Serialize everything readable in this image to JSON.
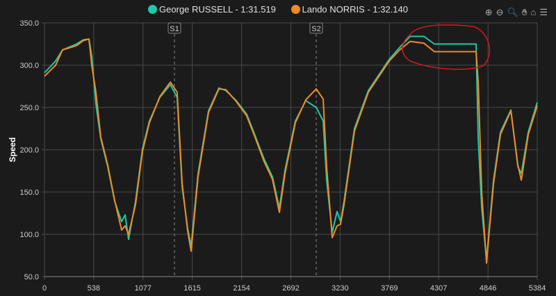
{
  "chart_data": {
    "type": "line",
    "title": "",
    "xlabel": "",
    "ylabel": "Speed",
    "xlim": [
      0,
      5384
    ],
    "ylim": [
      50,
      350
    ],
    "x_ticks": [
      "0",
      "538",
      "1077",
      "1615",
      "2154",
      "2692",
      "3230",
      "3769",
      "4307",
      "4846",
      "5384"
    ],
    "y_ticks": [
      "50.0",
      "100.0",
      "150.0",
      "200.0",
      "250.0",
      "300.0",
      "350.0"
    ],
    "grid": true,
    "legend_placement": "top-center",
    "markers": [
      {
        "label": "S1",
        "x": 1420
      },
      {
        "label": "S2",
        "x": 2969
      }
    ],
    "series": [
      {
        "name": "George RUSSELL - 1:31.519",
        "color": "#1fc8a8",
        "x": [
          0,
          122,
          197,
          349,
          425,
          486,
          516,
          562,
          615,
          691,
          767,
          843,
          881,
          919,
          995,
          1071,
          1147,
          1261,
          1375,
          1450,
          1504,
          1564,
          1602,
          1678,
          1792,
          1906,
          1982,
          2096,
          2210,
          2286,
          2400,
          2491,
          2567,
          2628,
          2741,
          2855,
          2969,
          3045,
          3083,
          3144,
          3197,
          3235,
          3273,
          3387,
          3539,
          3767,
          3881,
          3994,
          4146,
          4260,
          4716,
          4739,
          4777,
          4830,
          4906,
          4982,
          5096,
          5172,
          5210,
          5286,
          5384
        ],
        "y": [
          291,
          305,
          318,
          325,
          330,
          331,
          311,
          254,
          213,
          180,
          139,
          115,
          123,
          94,
          139,
          201,
          234,
          262,
          277,
          262,
          156,
          107,
          86,
          172,
          246,
          273,
          270,
          258,
          242,
          221,
          189,
          168,
          131,
          176,
          234,
          258,
          250,
          234,
          164,
          102,
          127,
          115,
          139,
          225,
          270,
          307,
          321,
          334,
          334,
          325,
          325,
          213,
          131,
          70,
          164,
          221,
          247,
          180,
          172,
          221,
          256
        ]
      },
      {
        "name": "Lando NORRIS - 1:32.140",
        "color": "#f08a24",
        "x": [
          0,
          122,
          197,
          349,
          425,
          486,
          516,
          562,
          615,
          691,
          767,
          843,
          881,
          919,
          995,
          1071,
          1147,
          1261,
          1375,
          1450,
          1504,
          1564,
          1602,
          1678,
          1792,
          1906,
          1982,
          2096,
          2210,
          2286,
          2400,
          2491,
          2567,
          2628,
          2741,
          2855,
          2969,
          3045,
          3083,
          3144,
          3197,
          3235,
          3273,
          3387,
          3539,
          3767,
          3881,
          3994,
          4146,
          4260,
          4716,
          4739,
          4777,
          4830,
          4906,
          4982,
          5096,
          5172,
          5210,
          5286,
          5384
        ],
        "y": [
          287,
          300,
          318,
          323,
          329,
          331,
          300,
          268,
          215,
          182,
          140,
          105,
          110,
          100,
          135,
          198,
          232,
          263,
          280,
          268,
          160,
          104,
          80,
          168,
          244,
          272,
          271,
          257,
          240,
          219,
          186,
          165,
          126,
          172,
          232,
          259,
          272,
          260,
          180,
          96,
          110,
          112,
          135,
          222,
          268,
          305,
          318,
          328,
          326,
          316,
          316,
          280,
          150,
          66,
          160,
          218,
          246,
          182,
          164,
          218,
          252
        ]
      }
    ]
  },
  "toolbar": {
    "icons": [
      "zoom-in-icon",
      "zoom-out-icon",
      "zoom-select-icon",
      "pan-hand-icon",
      "home-reset-icon",
      "menu-icon"
    ],
    "active_color": "#2d8bd6"
  },
  "annotation": {
    "color": "#d01818"
  }
}
